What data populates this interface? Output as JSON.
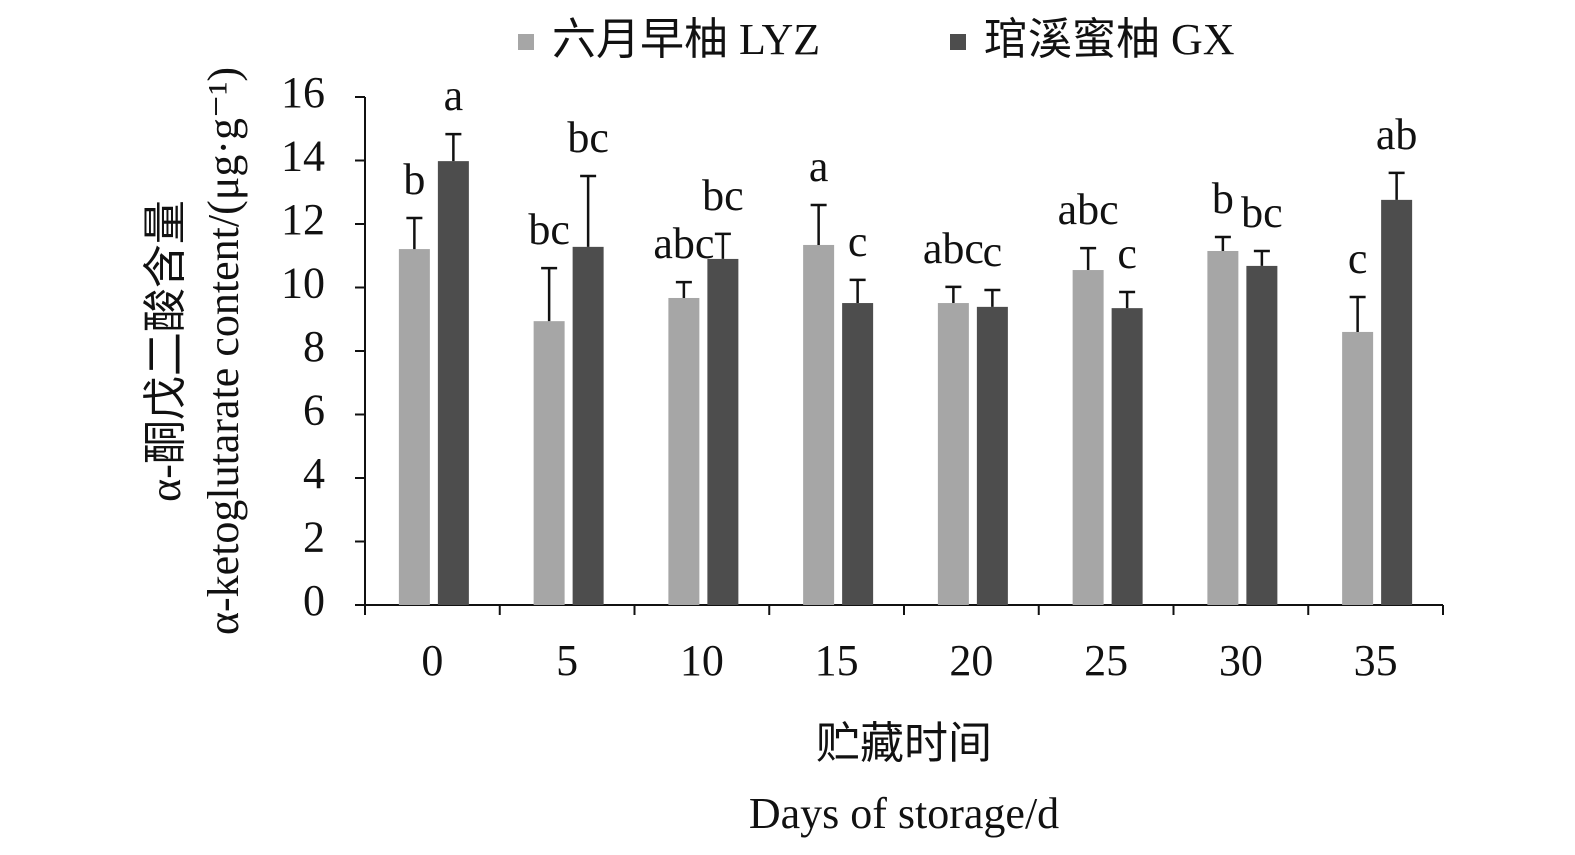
{
  "chart_data": {
    "type": "bar",
    "y_title": [
      "α-酮戊二酸含量",
      "α-ketoglutarate content/(μg·g⁻¹)"
    ],
    "x_title": [
      "贮藏时间",
      "Days of storage/d"
    ],
    "categories": [
      "0",
      "5",
      "10",
      "15",
      "20",
      "25",
      "30",
      "35"
    ],
    "series": [
      {
        "name": "六月早柚 LYZ",
        "color": "#a6a6a6",
        "values": [
          11.21,
          8.94,
          9.67,
          11.34,
          9.51,
          10.55,
          11.15,
          8.6
        ],
        "errors": [
          0.98,
          1.67,
          0.5,
          1.26,
          0.51,
          0.69,
          0.44,
          1.1
        ],
        "annotations": [
          "b",
          "bc",
          "abc",
          "a",
          "abc",
          "abc",
          "b",
          "c"
        ]
      },
      {
        "name": "琯溪蜜柚 GX",
        "color": "#4d4d4d",
        "values": [
          13.98,
          11.28,
          10.9,
          9.51,
          9.39,
          9.35,
          10.68,
          12.76
        ],
        "errors": [
          0.85,
          2.23,
          0.79,
          0.73,
          0.53,
          0.51,
          0.47,
          0.85
        ],
        "annotations": [
          "a",
          "bc",
          "bc",
          "c",
          "c",
          "c",
          "bc",
          "ab"
        ]
      }
    ],
    "ylim": [
      0,
      16
    ],
    "yticks": [
      0,
      2,
      4,
      6,
      8,
      10,
      12,
      14,
      16
    ],
    "legend": "top"
  }
}
